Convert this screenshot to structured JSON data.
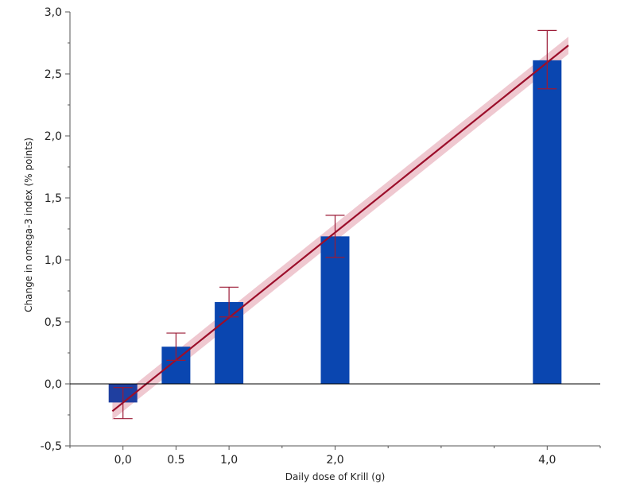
{
  "chart_data": {
    "type": "bar",
    "xlabel": "Daily dose of Krill (g)",
    "ylabel": "Change in omega-3 index (% points)",
    "xlim": [
      -0.5,
      4.5
    ],
    "ylim": [
      -0.5,
      3.0
    ],
    "y_ticks": [
      -0.5,
      0.0,
      0.5,
      1.0,
      1.5,
      2.0,
      2.5,
      3.0
    ],
    "y_tick_labels": [
      "-0,5",
      "0,0",
      "0,5",
      "1,0",
      "1,5",
      "2,0",
      "2,5",
      "3,0"
    ],
    "x_ticks": [
      0.0,
      0.5,
      1.0,
      2.0,
      4.0
    ],
    "x_tick_labels": [
      "0,0",
      "0.5",
      "1,0",
      "2,0",
      "4,0"
    ],
    "bars": [
      {
        "x": 0.0,
        "value": -0.15,
        "err_low": -0.28,
        "err_high": -0.03
      },
      {
        "x": 0.5,
        "value": 0.3,
        "err_low": 0.19,
        "err_high": 0.41
      },
      {
        "x": 1.0,
        "value": 0.66,
        "err_low": 0.54,
        "err_high": 0.78
      },
      {
        "x": 2.0,
        "value": 1.19,
        "err_low": 1.02,
        "err_high": 1.36
      },
      {
        "x": 4.0,
        "value": 2.61,
        "err_low": 2.38,
        "err_high": 2.85
      }
    ],
    "regression": {
      "x_start": -0.1,
      "y_start": -0.22,
      "x_end": 4.2,
      "y_end": 2.73,
      "ci_halfwidth": 0.07
    },
    "colors": {
      "bar": "#0a46b0",
      "bar_negative": "#1f3fa0",
      "line": "#9b0e2a",
      "band": "#e4a3b0",
      "error_bar": "#9b1a35",
      "axis": "#555555",
      "zero_line": "#000000"
    }
  }
}
